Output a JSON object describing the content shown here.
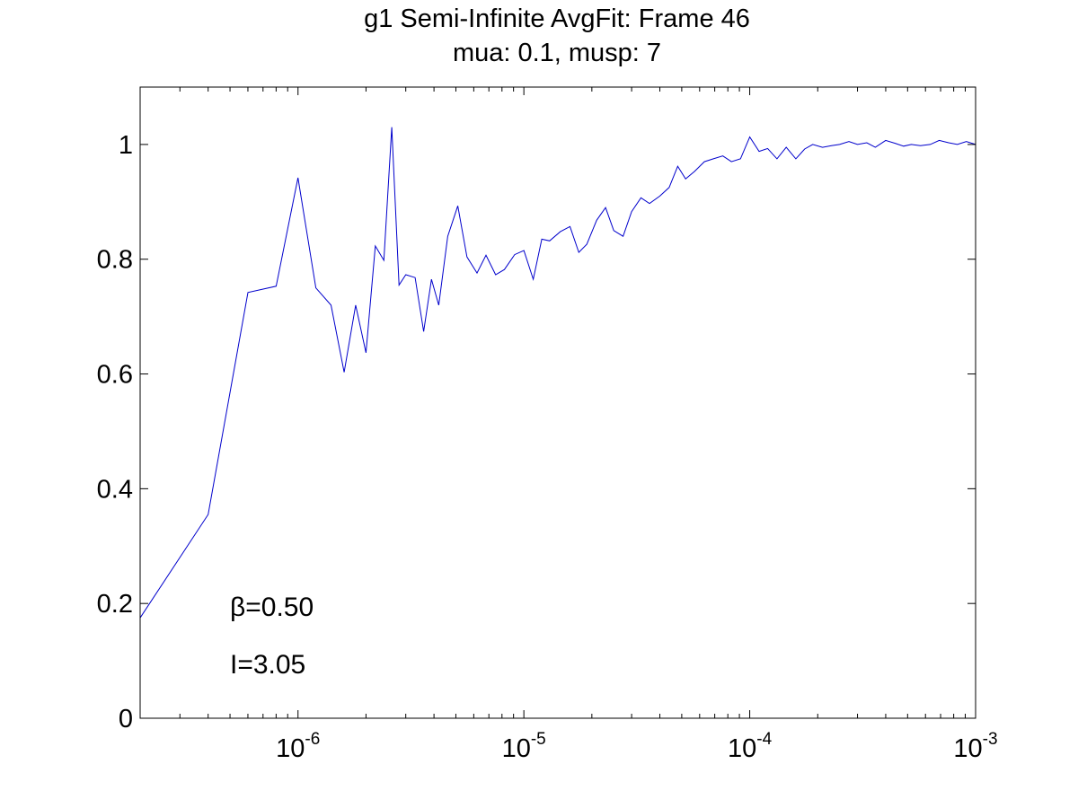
{
  "chart_data": {
    "type": "line",
    "title": "g1 Semi-Infinite AvgFit: Frame 46",
    "subtitle": "mua: 0.1, musp: 7",
    "xlabel": "",
    "ylabel": "",
    "xscale": "log",
    "xlim": [
      2e-07,
      0.001
    ],
    "ylim": [
      0,
      1.1
    ],
    "grid": false,
    "box": true,
    "line_color": "#0000cc",
    "x_tick_labels": [
      {
        "base": "10",
        "exp": "-6",
        "value": 1e-06
      },
      {
        "base": "10",
        "exp": "-5",
        "value": 1e-05
      },
      {
        "base": "10",
        "exp": "-4",
        "value": 0.0001
      },
      {
        "base": "10",
        "exp": "-3",
        "value": 0.001
      }
    ],
    "y_tick_labels": [
      "0",
      "0.2",
      "0.4",
      "0.6",
      "0.8",
      "1"
    ],
    "y_ticks": [
      0,
      0.2,
      0.4,
      0.6,
      0.8,
      1.0
    ],
    "annotations": {
      "beta_symbol": "β",
      "beta_text": "=0.50",
      "i_text": "I=3.05"
    },
    "series": [
      {
        "x": [
          2e-07,
          4e-07,
          6e-07,
          8e-07,
          1e-06,
          1.2e-06,
          1.4e-06,
          1.6e-06,
          1.8e-06,
          2e-06,
          2.2e-06,
          2.4e-06,
          2.6e-06,
          2.8e-06,
          3e-06,
          3.3e-06,
          3.6e-06,
          3.9e-06,
          4.2e-06,
          4.6e-06,
          5.1e-06,
          5.6e-06,
          6.2e-06,
          6.8e-06,
          7.5e-06,
          8.2e-06,
          9.1e-06,
          1e-05,
          1.1e-05,
          1.2e-05,
          1.3e-05,
          1.45e-05,
          1.6e-05,
          1.75e-05,
          1.9e-05,
          2.1e-05,
          2.3e-05,
          2.5e-05,
          2.75e-05,
          3e-05,
          3.3e-05,
          3.6e-05,
          4e-05,
          4.4e-05,
          4.8e-05,
          5.2e-05,
          5.7e-05,
          6.3e-05,
          6.9e-05,
          7.6e-05,
          8.3e-05,
          9.1e-05,
          0.0001,
          0.00011,
          0.00012,
          0.000132,
          0.000145,
          0.00016,
          0.000175,
          0.00019,
          0.00021,
          0.00023,
          0.00025,
          0.000275,
          0.0003,
          0.00033,
          0.00036,
          0.0004,
          0.00044,
          0.00048,
          0.00052,
          0.00057,
          0.00063,
          0.00069,
          0.00076,
          0.00083,
          0.00091,
          0.001
        ],
        "y": [
          0.175,
          0.355,
          0.742,
          0.753,
          0.942,
          0.75,
          0.72,
          0.603,
          0.72,
          0.637,
          0.823,
          0.798,
          1.03,
          0.755,
          0.773,
          0.768,
          0.674,
          0.765,
          0.72,
          0.84,
          0.893,
          0.804,
          0.776,
          0.807,
          0.773,
          0.782,
          0.808,
          0.815,
          0.765,
          0.835,
          0.832,
          0.848,
          0.857,
          0.812,
          0.826,
          0.868,
          0.89,
          0.85,
          0.84,
          0.883,
          0.907,
          0.897,
          0.91,
          0.925,
          0.962,
          0.94,
          0.953,
          0.97,
          0.975,
          0.98,
          0.97,
          0.975,
          1.013,
          0.988,
          0.993,
          0.975,
          0.995,
          0.975,
          0.992,
          1.0,
          0.995,
          0.998,
          1.0,
          1.005,
          1.0,
          1.003,
          0.995,
          1.007,
          1.002,
          0.997,
          1.0,
          0.998,
          1.0,
          1.007,
          1.003,
          1.0,
          1.005,
          1.0
        ]
      }
    ]
  }
}
